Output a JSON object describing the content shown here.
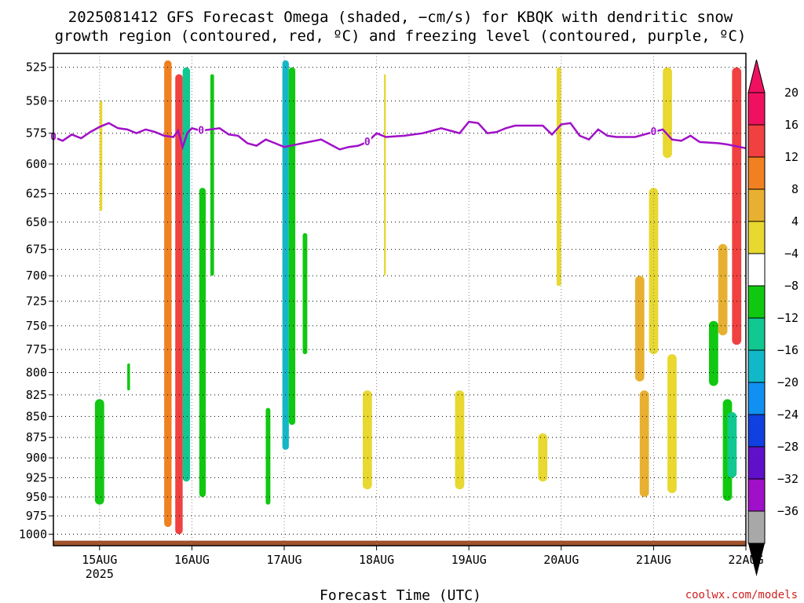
{
  "chart_data": {
    "type": "heatmap",
    "title_lines": [
      "2025081412 GFS Forecast Omega (shaded, −cm/s) for KBQK with dendritic snow",
      "growth region (contoured, red, ºC) and freezing level (contoured, purple, ºC)"
    ],
    "xlabel": "Forecast Time (UTC)",
    "x_ticks": [
      {
        "label": "15AUG",
        "sub": "2025",
        "day": 15
      },
      {
        "label": "16AUG",
        "sub": "",
        "day": 16
      },
      {
        "label": "17AUG",
        "sub": "",
        "day": 17
      },
      {
        "label": "18AUG",
        "sub": "",
        "day": 18
      },
      {
        "label": "19AUG",
        "sub": "",
        "day": 19
      },
      {
        "label": "20AUG",
        "sub": "",
        "day": 20
      },
      {
        "label": "21AUG",
        "sub": "",
        "day": 21
      },
      {
        "label": "22AUG",
        "sub": "",
        "day": 22
      }
    ],
    "xlim_days": [
      14.5,
      22.0
    ],
    "y_ticks": [
      525,
      550,
      575,
      600,
      625,
      650,
      675,
      700,
      725,
      750,
      775,
      800,
      825,
      850,
      875,
      900,
      925,
      950,
      975,
      1000
    ],
    "ylim_hpa": [
      515,
      1016
    ],
    "y_scale": "log",
    "grid": true,
    "colorbar": {
      "labels": [
        "20",
        "16",
        "12",
        "8",
        "4",
        "−4",
        "−8",
        "−12",
        "−16",
        "−20",
        "−24",
        "−28",
        "−32",
        "−36"
      ],
      "colors": [
        "#f01060",
        "#f04040",
        "#f08020",
        "#e8b030",
        "#e8d830",
        "#ffffff",
        "#10c810",
        "#10c890",
        "#10b8c8",
        "#1090f0",
        "#1040e0",
        "#6010c8",
        "#a010c8",
        "#a8a8a8"
      ],
      "top_arrow_color": "#f01060",
      "bottom_arrow_color": "#000000"
    },
    "freezing_level": {
      "label": "0",
      "color": "#a010c8",
      "points": [
        [
          14.5,
          578
        ],
        [
          14.6,
          581
        ],
        [
          14.7,
          576
        ],
        [
          14.8,
          579
        ],
        [
          14.9,
          574
        ],
        [
          15.0,
          570
        ],
        [
          15.1,
          567
        ],
        [
          15.2,
          571
        ],
        [
          15.3,
          572
        ],
        [
          15.4,
          575
        ],
        [
          15.5,
          572
        ],
        [
          15.6,
          574
        ],
        [
          15.7,
          577
        ],
        [
          15.8,
          578
        ],
        [
          15.85,
          573
        ],
        [
          15.9,
          586
        ],
        [
          15.95,
          575
        ],
        [
          16.0,
          571
        ],
        [
          16.1,
          573
        ],
        [
          16.2,
          572
        ],
        [
          16.3,
          571
        ],
        [
          16.4,
          576
        ],
        [
          16.5,
          577
        ],
        [
          16.6,
          583
        ],
        [
          16.7,
          585
        ],
        [
          16.8,
          580
        ],
        [
          16.9,
          583
        ],
        [
          17.0,
          586
        ],
        [
          17.2,
          583
        ],
        [
          17.4,
          580
        ],
        [
          17.5,
          584
        ],
        [
          17.6,
          588
        ],
        [
          17.7,
          586
        ],
        [
          17.8,
          585
        ],
        [
          17.9,
          582
        ],
        [
          18.0,
          575
        ],
        [
          18.1,
          578
        ],
        [
          18.3,
          577
        ],
        [
          18.5,
          575
        ],
        [
          18.6,
          573
        ],
        [
          18.7,
          571
        ],
        [
          18.8,
          573
        ],
        [
          18.9,
          575
        ],
        [
          19.0,
          566
        ],
        [
          19.1,
          567
        ],
        [
          19.2,
          575
        ],
        [
          19.3,
          574
        ],
        [
          19.4,
          571
        ],
        [
          19.5,
          569
        ],
        [
          19.6,
          569
        ],
        [
          19.8,
          569
        ],
        [
          19.9,
          576
        ],
        [
          20.0,
          568
        ],
        [
          20.1,
          567
        ],
        [
          20.2,
          577
        ],
        [
          20.3,
          580
        ],
        [
          20.4,
          572
        ],
        [
          20.5,
          577
        ],
        [
          20.6,
          578
        ],
        [
          20.8,
          578
        ],
        [
          21.0,
          574
        ],
        [
          21.1,
          572
        ],
        [
          21.2,
          580
        ],
        [
          21.3,
          581
        ],
        [
          21.4,
          577
        ],
        [
          21.5,
          582
        ],
        [
          21.7,
          583
        ],
        [
          21.8,
          584
        ],
        [
          22.0,
          587
        ]
      ]
    },
    "surface_color": "#a0522d",
    "omega_regions": [
      {
        "x": [
          15.0,
          15.03
        ],
        "p": [
          550,
          640
        ],
        "value": 6
      },
      {
        "x": [
          14.95,
          15.05
        ],
        "p": [
          830,
          960
        ],
        "value": -6
      },
      {
        "x": [
          15.3,
          15.33
        ],
        "p": [
          790,
          820
        ],
        "value": -6
      },
      {
        "x": [
          15.7,
          15.78
        ],
        "p": [
          520,
          990
        ],
        "value": 12
      },
      {
        "x": [
          15.82,
          15.9
        ],
        "p": [
          530,
          1000
        ],
        "value": 16
      },
      {
        "x": [
          15.9,
          15.98
        ],
        "p": [
          525,
          930
        ],
        "value": -8
      },
      {
        "x": [
          16.08,
          16.15
        ],
        "p": [
          620,
          950
        ],
        "value": -6
      },
      {
        "x": [
          16.2,
          16.24
        ],
        "p": [
          530,
          700
        ],
        "value": -6
      },
      {
        "x": [
          16.98,
          17.05
        ],
        "p": [
          520,
          890
        ],
        "value": -12
      },
      {
        "x": [
          17.05,
          17.12
        ],
        "p": [
          525,
          860
        ],
        "value": -6
      },
      {
        "x": [
          17.2,
          17.25
        ],
        "p": [
          660,
          780
        ],
        "value": -6
      },
      {
        "x": [
          16.8,
          16.85
        ],
        "p": [
          840,
          960
        ],
        "value": -6
      },
      {
        "x": [
          17.85,
          17.95
        ],
        "p": [
          820,
          940
        ],
        "value": 6
      },
      {
        "x": [
          18.08,
          18.1
        ],
        "p": [
          530,
          700
        ],
        "value": 5
      },
      {
        "x": [
          18.85,
          18.95
        ],
        "p": [
          820,
          940
        ],
        "value": 5
      },
      {
        "x": [
          19.75,
          19.85
        ],
        "p": [
          870,
          930
        ],
        "value": 5
      },
      {
        "x": [
          19.95,
          20.0
        ],
        "p": [
          525,
          710
        ],
        "value": 5
      },
      {
        "x": [
          20.8,
          20.9
        ],
        "p": [
          700,
          810
        ],
        "value": 8
      },
      {
        "x": [
          20.85,
          20.95
        ],
        "p": [
          820,
          950
        ],
        "value": 9
      },
      {
        "x": [
          20.95,
          21.05
        ],
        "p": [
          620,
          780
        ],
        "value": 6
      },
      {
        "x": [
          21.1,
          21.2
        ],
        "p": [
          525,
          595
        ],
        "value": 5
      },
      {
        "x": [
          21.15,
          21.25
        ],
        "p": [
          780,
          945
        ],
        "value": 5
      },
      {
        "x": [
          21.6,
          21.7
        ],
        "p": [
          745,
          815
        ],
        "value": -6
      },
      {
        "x": [
          21.7,
          21.8
        ],
        "p": [
          670,
          760
        ],
        "value": 10
      },
      {
        "x": [
          21.75,
          21.85
        ],
        "p": [
          830,
          955
        ],
        "value": -7
      },
      {
        "x": [
          21.8,
          21.9
        ],
        "p": [
          845,
          925
        ],
        "value": -11
      },
      {
        "x": [
          21.85,
          21.95
        ],
        "p": [
          525,
          770
        ],
        "value": 18
      }
    ]
  },
  "credit": "coolwx.com/models"
}
